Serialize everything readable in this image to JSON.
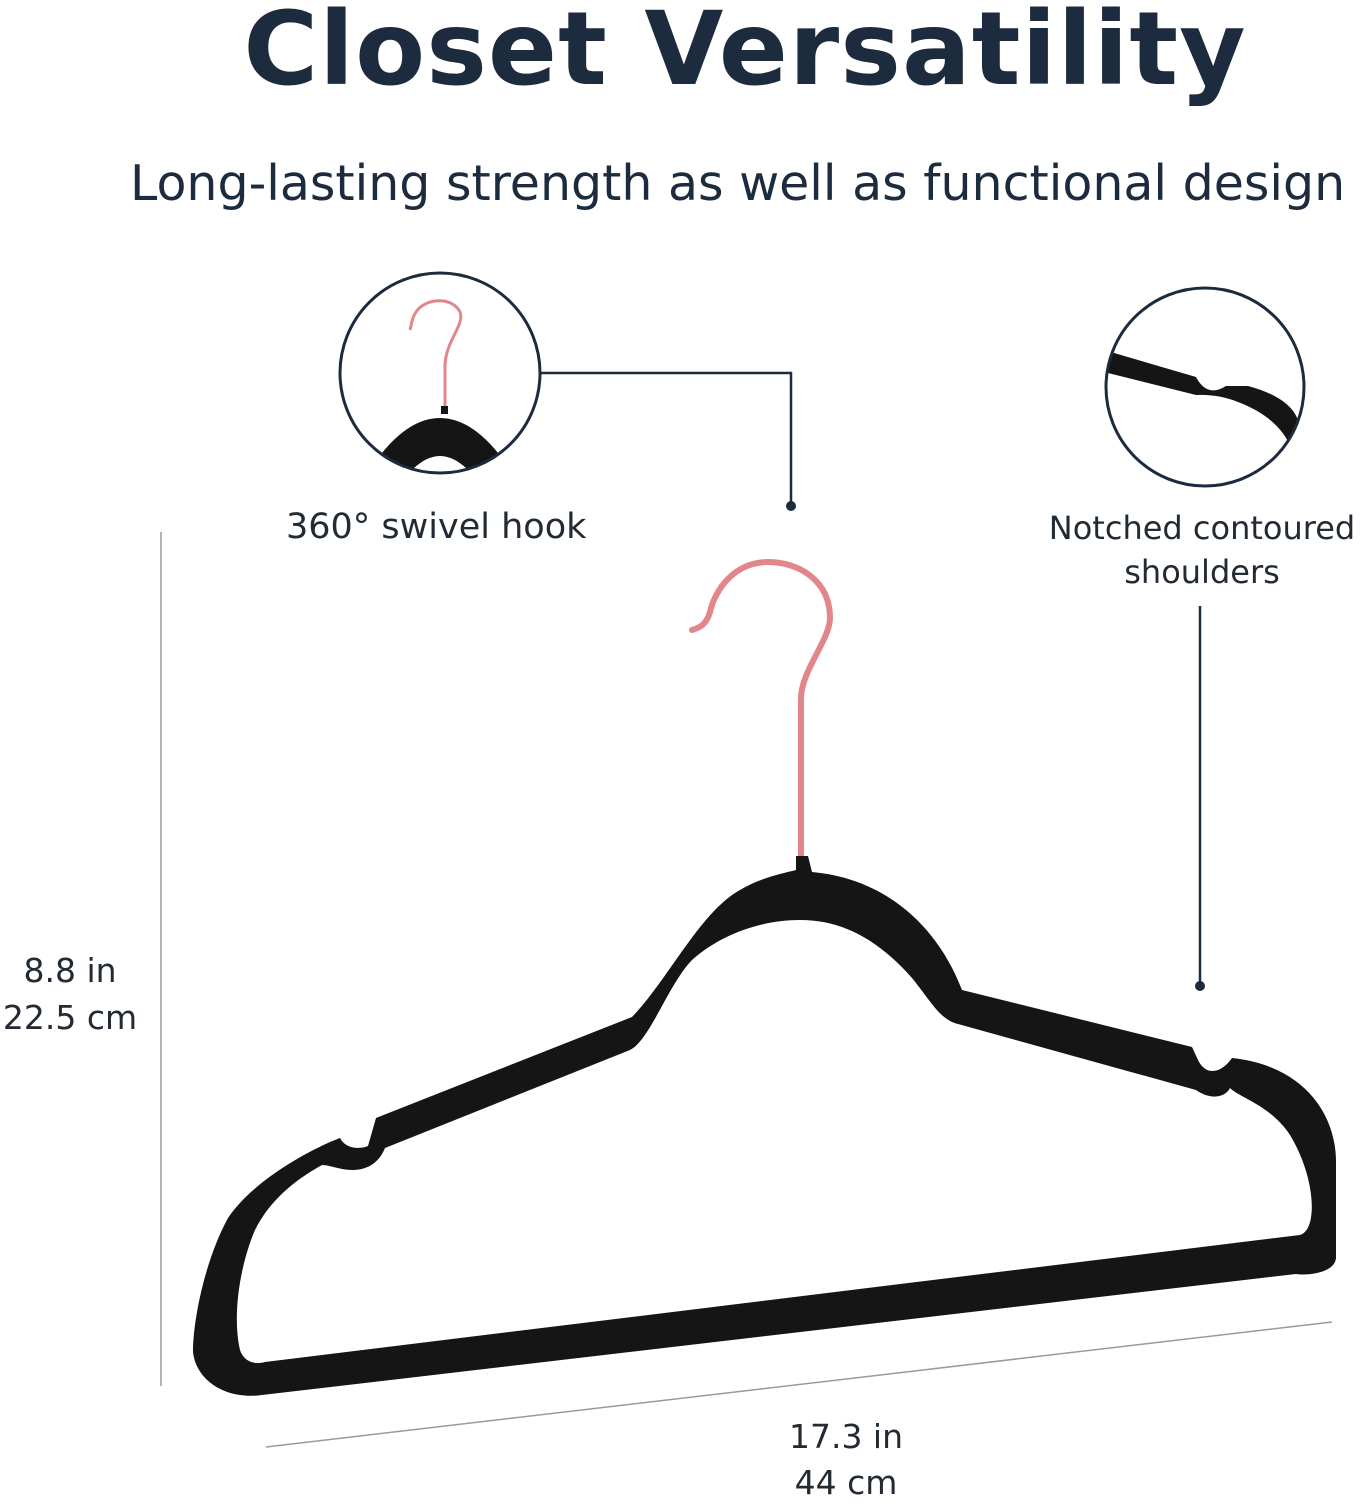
{
  "header": {
    "title": "Closet Versatility",
    "subtitle": "Long-lasting strength as well as functional design"
  },
  "callouts": {
    "hook": {
      "label": "360° swivel hook"
    },
    "notch": {
      "line1": "Notched contoured",
      "line2": "shoulders"
    }
  },
  "dimensions": {
    "height": {
      "imperial": "8.8 in",
      "metric": "22.5 cm"
    },
    "width": {
      "imperial": "17.3 in",
      "metric": "44 cm"
    }
  },
  "colors": {
    "text": "#1d2b3e",
    "hanger": "#151515",
    "hook": "#e3868c",
    "guide_line": "#9a9a9a"
  }
}
